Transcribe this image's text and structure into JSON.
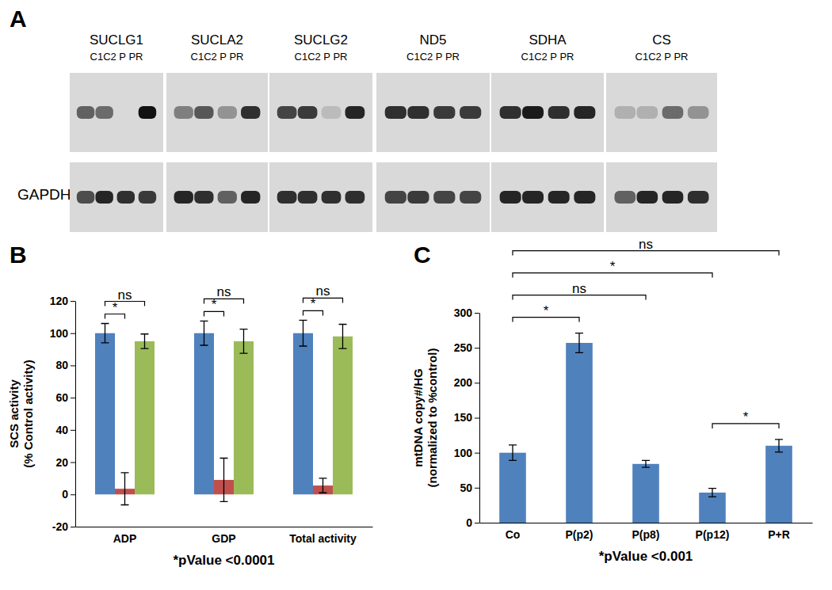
{
  "panel_labels": [
    "A",
    "B",
    "C"
  ],
  "blots": {
    "lane_header": "C1C2 P PR",
    "loading_control": "GAPDH",
    "targets": [
      {
        "name": "SUCLG1",
        "intensity": [
          0.6,
          0.55,
          0,
          1
        ],
        "loading_intensity": [
          0.7,
          0.9,
          0.85,
          0.8
        ]
      },
      {
        "name": "SUCLA2",
        "intensity": [
          0.45,
          0.65,
          0.35,
          0.85
        ],
        "loading_intensity": [
          0.9,
          0.85,
          0.6,
          0.9
        ]
      },
      {
        "name": "SUCLG2",
        "intensity": [
          0.75,
          0.8,
          0.15,
          0.9
        ],
        "loading_intensity": [
          0.85,
          0.85,
          0.85,
          0.85
        ]
      },
      {
        "name": "ND5",
        "intensity": [
          0.85,
          0.85,
          0.8,
          0.8
        ],
        "loading_intensity": [
          0.75,
          0.8,
          0.75,
          0.75
        ]
      },
      {
        "name": "SDHA",
        "intensity": [
          0.85,
          0.95,
          0.85,
          0.9
        ],
        "loading_intensity": [
          0.9,
          0.9,
          0.9,
          0.9
        ]
      },
      {
        "name": "CS",
        "intensity": [
          0.2,
          0.2,
          0.55,
          0.35
        ],
        "loading_intensity": [
          0.6,
          0.9,
          0.9,
          0.85
        ]
      }
    ]
  },
  "chart_data": [
    {
      "type": "bar",
      "categories": [
        "ADP",
        "GDP",
        "Total activity"
      ],
      "series": [
        {
          "color": "#4f81bd",
          "values": [
            100,
            100,
            100
          ],
          "errors": [
            6,
            7.5,
            8
          ]
        },
        {
          "color": "#c0504d",
          "values": [
            3.5,
            9,
            5.5
          ],
          "errors": [
            10,
            13.5,
            4.5
          ]
        },
        {
          "color": "#9bbb59",
          "values": [
            95,
            95,
            98
          ],
          "errors": [
            4.5,
            7.5,
            7.5
          ]
        }
      ],
      "ylabel": [
        "SCS activity",
        "(% Control activity)"
      ],
      "ylim": [
        -20,
        120
      ],
      "yticks": [
        -20,
        0,
        20,
        40,
        60,
        80,
        100,
        120
      ],
      "grid": false,
      "annotations": [
        {
          "text": "*",
          "category": 0,
          "between": [
            0,
            1
          ]
        },
        {
          "text": "ns",
          "category": 0,
          "between": [
            0,
            2
          ]
        },
        {
          "text": "*",
          "category": 1,
          "between": [
            0,
            1
          ]
        },
        {
          "text": "ns",
          "category": 1,
          "between": [
            0,
            2
          ]
        },
        {
          "text": "*",
          "category": 2,
          "between": [
            0,
            1
          ]
        },
        {
          "text": "ns",
          "category": 2,
          "between": [
            0,
            2
          ]
        }
      ],
      "note": "*pValue <0.0001"
    },
    {
      "type": "bar",
      "categories": [
        "Co",
        "P(p2)",
        "P(p8)",
        "P(p12)",
        "P+R"
      ],
      "values": [
        100,
        257,
        84,
        43,
        110
      ],
      "errors": [
        11,
        14,
        5,
        6,
        9
      ],
      "color": "#4f81bd",
      "ylabel": [
        "mtDNA copy#/HG",
        "(normalized to %control)"
      ],
      "ylim": [
        0,
        300
      ],
      "yticks": [
        0,
        50,
        100,
        150,
        200,
        250,
        300
      ],
      "grid": false,
      "annotations": [
        {
          "text": "ns",
          "between": [
            0,
            4
          ]
        },
        {
          "text": "*",
          "between": [
            0,
            3
          ]
        },
        {
          "text": "ns",
          "between": [
            0,
            2
          ]
        },
        {
          "text": "*",
          "between": [
            0,
            1
          ]
        },
        {
          "text": "*",
          "between": [
            3,
            4
          ]
        }
      ],
      "note": "*pValue <0.001"
    }
  ]
}
